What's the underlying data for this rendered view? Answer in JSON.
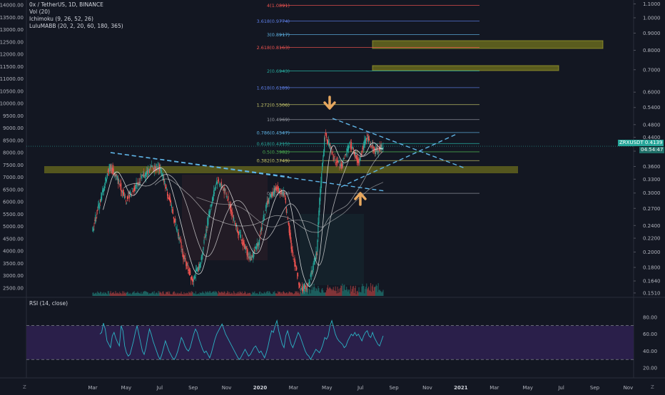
{
  "legend": {
    "symbol": "0x / TetherUS, 1D, BINANCE",
    "vol": "Vol (20)",
    "ichimoku": "Ichimoku (9, 26, 52, 26)",
    "lulu": "LuluMABB (20, 2, 20, 60, 180, 365)",
    "rsi": "RSI (14, close)"
  },
  "price_tag": {
    "label": "ZRXUSDT",
    "value": "0.4139",
    "countdown": "04:54:47"
  },
  "corner": {
    "left": "Z",
    "right": "Z"
  },
  "colors": {
    "background": "#131722",
    "up": "#26a69a",
    "down": "#ef5350",
    "zone": "#8b8b1c",
    "trend": "#5fb4e6",
    "arrow": "#e6a75f",
    "rsi_line": "#2bb3c4",
    "rsi_fill": "#2a1f4a"
  },
  "chart_data": [
    {
      "type": "line",
      "title": "",
      "left_scale": {
        "labels": [
          "14000.00",
          "13500.00",
          "13000.00",
          "12500.00",
          "12000.00",
          "11500.00",
          "11000.00",
          "10500.00",
          "10000.00",
          "9500.00",
          "9000.00",
          "8500.00",
          "8000.00",
          "7500.00",
          "7000.00",
          "6500.00",
          "6000.00",
          "5500.00",
          "5000.00",
          "4500.00",
          "4000.00",
          "3500.00",
          "3000.00",
          "2500.00"
        ]
      },
      "right_scale": {
        "log": true,
        "labels": [
          "1.1000",
          "1.0000",
          "0.9000",
          "0.8000",
          "0.7000",
          "0.6000",
          "0.5400",
          "0.4800",
          "0.4400",
          "0.4000",
          "0.3600",
          "0.3300",
          "0.3000",
          "0.2700",
          "0.2400",
          "0.2200",
          "0.2000",
          "0.1800",
          "0.1640",
          "0.1510"
        ]
      },
      "x_ticks": [
        "Mar",
        "May",
        "Jul",
        "Sep",
        "Nov",
        "2020",
        "Mar",
        "May",
        "Jul",
        "Sep",
        "Nov",
        "2021",
        "Mar",
        "May",
        "Jul",
        "Sep",
        "Nov"
      ],
      "fib_levels": [
        {
          "label": "4(1.0891)",
          "price": 1.0891,
          "color": "#ef5350"
        },
        {
          "label": "3.618(0.9774)",
          "price": 0.9774,
          "color": "#5c7de6"
        },
        {
          "label": "3(0.8917)",
          "price": 0.8917,
          "color": "#5fb4e6"
        },
        {
          "label": "2.618(0.8163)",
          "price": 0.8163,
          "color": "#ef5350"
        },
        {
          "label": "2(0.6943)",
          "price": 0.6943,
          "color": "#26a69a"
        },
        {
          "label": "1.618(0.6189)",
          "price": 0.6189,
          "color": "#5c7de6"
        },
        {
          "label": "1.272(0.5506)",
          "price": 0.5506,
          "color": "#c7c76a"
        },
        {
          "label": "1(0.4969)",
          "price": 0.4969,
          "color": "#9598a1"
        },
        {
          "label": "0.786(0.4547)",
          "price": 0.4547,
          "color": "#5fb4e6"
        },
        {
          "label": "0.618(0.4215)",
          "price": 0.4215,
          "color": "#26a69a"
        },
        {
          "label": "0.5(0.3982)",
          "price": 0.3982,
          "color": "#4caf50"
        },
        {
          "label": "0.382(0.3749)",
          "price": 0.3749,
          "color": "#c7c76a"
        },
        {
          "label": "0(0.2994)",
          "price": 0.2994,
          "color": "#9598a1"
        }
      ],
      "close_series": [
        [
          "Mar",
          0.235
        ],
        [
          "Apr",
          0.29
        ],
        [
          "Apr",
          0.36
        ],
        [
          "May",
          0.33
        ],
        [
          "May",
          0.285
        ],
        [
          "May",
          0.31
        ],
        [
          "Jun",
          0.335
        ],
        [
          "Jun",
          0.355
        ],
        [
          "Jul",
          0.36
        ],
        [
          "Jul",
          0.3
        ],
        [
          "Aug",
          0.24
        ],
        [
          "Aug",
          0.19
        ],
        [
          "Sep",
          0.165
        ],
        [
          "Sep",
          0.185
        ],
        [
          "Oct",
          0.26
        ],
        [
          "Oct",
          0.33
        ],
        [
          "Nov",
          0.3
        ],
        [
          "Nov",
          0.25
        ],
        [
          "Dec",
          0.215
        ],
        [
          "Dec",
          0.19
        ],
        [
          "2020",
          0.215
        ],
        [
          "Jan",
          0.28
        ],
        [
          "Feb",
          0.31
        ],
        [
          "Feb",
          0.3
        ],
        [
          "Mar",
          0.2
        ],
        [
          "Mar",
          0.155
        ],
        [
          "Apr",
          0.16
        ],
        [
          "Apr",
          0.2
        ],
        [
          "May",
          0.45
        ],
        [
          "May",
          0.38
        ],
        [
          "Jun",
          0.36
        ],
        [
          "Jun",
          0.42
        ],
        [
          "Jul",
          0.37
        ],
        [
          "Jul",
          0.44
        ],
        [
          "Aug",
          0.4
        ],
        [
          "Aug",
          0.414
        ]
      ],
      "rsi": {
        "ticks": [
          "80.00",
          "60.00",
          "40.00",
          "20.00"
        ],
        "ylim": [
          15,
          90
        ],
        "bands": [
          70,
          30
        ],
        "values": [
          60,
          62,
          73,
          66,
          52,
          48,
          44,
          58,
          62,
          55,
          50,
          46,
          70,
          64,
          46,
          38,
          34,
          36,
          44,
          52,
          62,
          70,
          60,
          50,
          40,
          36,
          44,
          56,
          66,
          60,
          52,
          46,
          40,
          34,
          30,
          36,
          44,
          52,
          46,
          40,
          36,
          32,
          30,
          34,
          40,
          48,
          56,
          52,
          46,
          42,
          40,
          44,
          52,
          60,
          66,
          62,
          54,
          48,
          42,
          38,
          40,
          36,
          32,
          38,
          46,
          54,
          60,
          64,
          68,
          72,
          66,
          60,
          56,
          52,
          48,
          44,
          40,
          36,
          32,
          30,
          34,
          38,
          42,
          38,
          34,
          36,
          40,
          44,
          46,
          42,
          38,
          40,
          36,
          32,
          38,
          46,
          56,
          64,
          62,
          70,
          76,
          64,
          56,
          48,
          44,
          58,
          64,
          56,
          48,
          44,
          50,
          56,
          62,
          58,
          52,
          46,
          40,
          36,
          34,
          30,
          34,
          38,
          42,
          40,
          38,
          42,
          48,
          56,
          54,
          58,
          70,
          76,
          68,
          60,
          55,
          52,
          50,
          48,
          44,
          46,
          52,
          56,
          60,
          58,
          62,
          58,
          60,
          56,
          52,
          58,
          62,
          64,
          58,
          56,
          62,
          56,
          52,
          48,
          46,
          52,
          58
        ]
      }
    }
  ]
}
